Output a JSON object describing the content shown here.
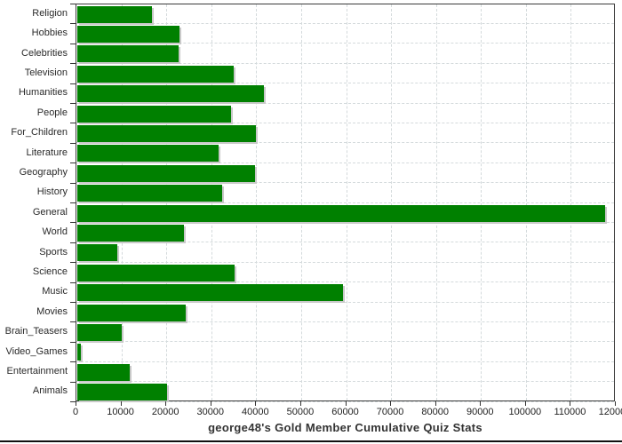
{
  "chart_data": {
    "type": "bar",
    "orientation": "horizontal",
    "title": "george48's Gold Member Cumulative Quiz Stats",
    "categories": [
      "Religion",
      "Hobbies",
      "Celebrities",
      "Television",
      "Humanities",
      "People",
      "For_Children",
      "Literature",
      "Geography",
      "History",
      "General",
      "World",
      "Sports",
      "Science",
      "Music",
      "Movies",
      "Brain_Teasers",
      "Video_Games",
      "Entertainment",
      "Animals"
    ],
    "values": [
      16600,
      22700,
      22500,
      34700,
      41600,
      34200,
      39700,
      31400,
      39600,
      32200,
      117400,
      23800,
      8800,
      35000,
      59200,
      24200,
      9900,
      850,
      11700,
      19900
    ],
    "xlabel": "",
    "ylabel": "",
    "xlim": [
      0,
      120000
    ],
    "x_ticks": [
      0,
      10000,
      20000,
      30000,
      40000,
      50000,
      60000,
      70000,
      80000,
      90000,
      100000,
      110000,
      120000
    ],
    "grid": true,
    "gridline_style": "dashed",
    "legend": "none",
    "colors": {
      "bar": "#008000",
      "bar_shadow": "#c9c9c9",
      "gridline": "#d4dadc",
      "plot_border": "#3b3b3b",
      "tick": "#333333",
      "tick_label": "#222222",
      "category_label": "#2a2a2a",
      "title": "#333333",
      "background": "#ffffff",
      "bottom_rule": "#111111"
    }
  }
}
